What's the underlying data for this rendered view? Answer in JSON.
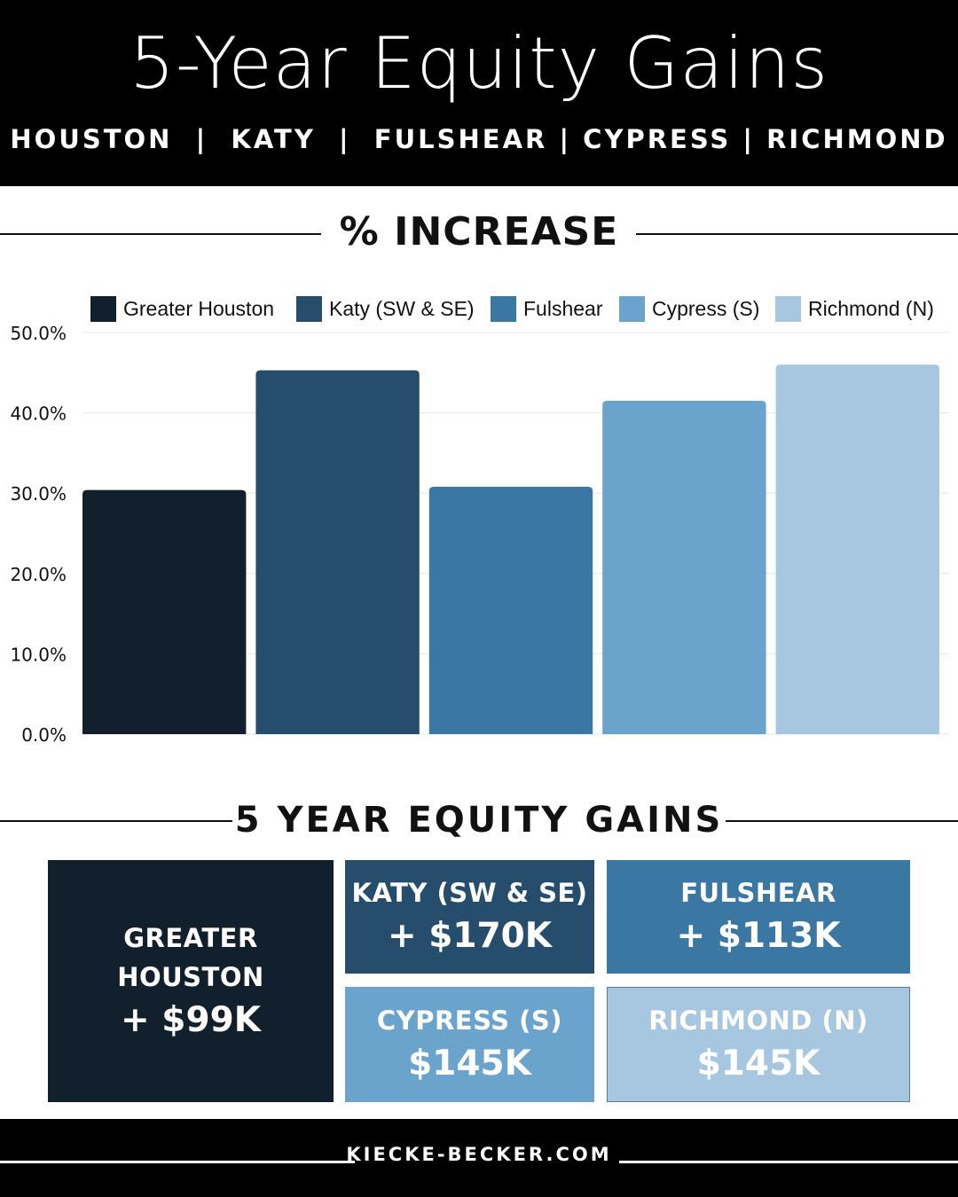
{
  "header": {
    "title": "5-Year Equity Gains",
    "subtitle": "HOUSTON  |  KATY  |  FULSHEAR | CYPRESS | RICHMOND"
  },
  "sections": {
    "increase_title": "% INCREASE",
    "gains_title": "5 YEAR EQUITY GAINS"
  },
  "colors": {
    "greater_houston": "#12202e",
    "katy": "#264e6c",
    "fulshear": "#3a77a3",
    "cypress": "#6aa3cc",
    "richmond": "#a7c7e0"
  },
  "chart_data": {
    "type": "bar",
    "categories": [
      "Greater Houston",
      "Katy (SW & SE)",
      "Fulshear",
      "Cypress (S)",
      "Richmond (N)"
    ],
    "values": [
      30.4,
      45.3,
      30.8,
      41.5,
      46.0
    ],
    "unit": "%",
    "ylim": [
      0,
      50
    ],
    "yticks": [
      "0.0%",
      "10.0%",
      "20.0%",
      "30.0%",
      "40.0%",
      "50.0%"
    ],
    "grid": true,
    "legend_position": "top"
  },
  "gains": [
    {
      "name": "GREATER HOUSTON",
      "value": "+ $99K"
    },
    {
      "name": "KATY (SW & SE)",
      "value": "+ $170K"
    },
    {
      "name": "FULSHEAR",
      "value": "+ $113K"
    },
    {
      "name": "CYPRESS (S)",
      "value": "$145K"
    },
    {
      "name": "RICHMOND (N)",
      "value": "$145K"
    }
  ],
  "footer": {
    "website": "KIECKE-BECKER.COM"
  }
}
